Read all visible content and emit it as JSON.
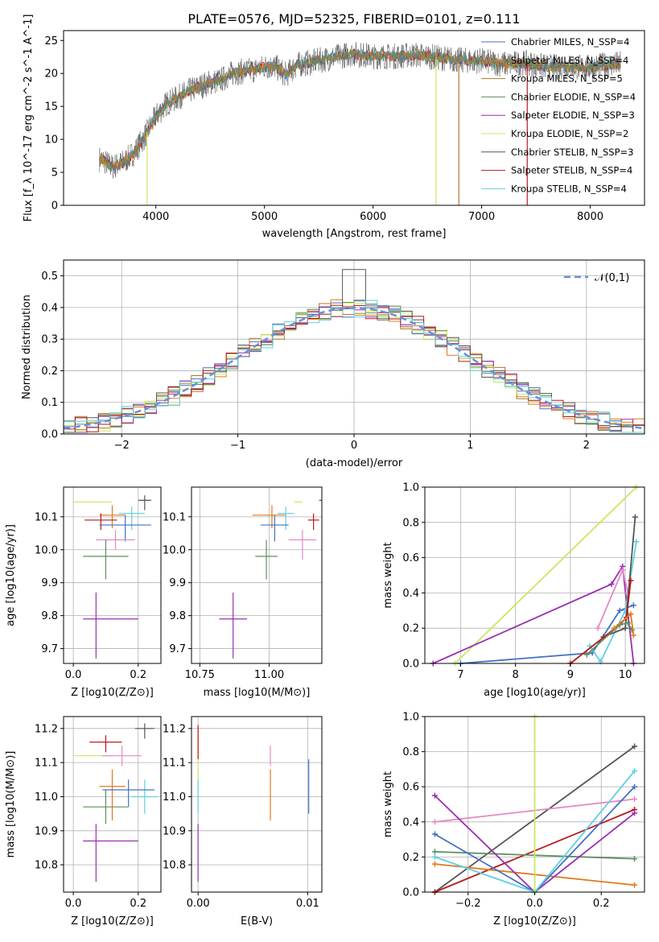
{
  "figure_title": "PLATE=0576, MJD=52325, FIBERID=0101, z=0.111",
  "colors": {
    "grid": "#b0b0b0",
    "axes": "#000000",
    "model_colors": [
      "#4472c4",
      "#e07a1e",
      "#ad7a2a",
      "#5e8f5e",
      "#9a2fb0",
      "#c8e860",
      "#555555",
      "#b8191b",
      "#5ed0e0"
    ],
    "extra_colors": [
      "#e68ac2",
      "#8c564b"
    ]
  },
  "chart_data": [
    {
      "id": "spectrum",
      "type": "line",
      "title": "PLATE=0576, MJD=52325, FIBERID=0101, z=0.111",
      "xlabel": "wavelength [Angstrom, rest frame]",
      "ylabel": "Flux [f_λ 10^-17 erg cm^-2 s^-1 A^-1]",
      "xlim": [
        3150,
        8500
      ],
      "ylim": [
        0,
        26.5
      ],
      "xticks": [
        "4000",
        "5000",
        "6000",
        "7000",
        "8000"
      ],
      "yticks": [
        "0",
        "5",
        "10",
        "15",
        "20",
        "25"
      ],
      "grid": false,
      "legend_position": "upper right",
      "legend": [
        {
          "label": "Chabrier MILES, N_SSP=4",
          "color": "#4472c4"
        },
        {
          "label": "Salpeter MILES, N_SSP=4",
          "color": "#e07a1e"
        },
        {
          "label": "Kroupa MILES, N_SSP=5",
          "color": "#ad7a2a"
        },
        {
          "label": "Chabrier ELODIE, N_SSP=4",
          "color": "#5e8f5e"
        },
        {
          "label": "Salpeter ELODIE, N_SSP=3",
          "color": "#9a2fb0"
        },
        {
          "label": "Kroupa ELODIE, N_SSP=2",
          "color": "#c8e860"
        },
        {
          "label": "Chabrier STELIB, N_SSP=3",
          "color": "#555555"
        },
        {
          "label": "Salpeter STELIB, N_SSP=4",
          "color": "#b8191b"
        },
        {
          "label": "Kroupa STELIB, N_SSP=4",
          "color": "#5ed0e0"
        }
      ],
      "spectrum_anchors": {
        "x": [
          3500,
          3600,
          3700,
          3800,
          3900,
          4000,
          4100,
          4200,
          4300,
          4400,
          4500,
          4600,
          4700,
          4800,
          4900,
          5000,
          5100,
          5200,
          5300,
          5400,
          5600,
          5800,
          6000,
          6200,
          6400,
          6600,
          6800,
          7000,
          7200,
          7400,
          7600,
          7800,
          8000,
          8200
        ],
        "y": [
          7.0,
          5.8,
          6.5,
          8.0,
          10.5,
          13.5,
          15.5,
          16.3,
          17.3,
          18.0,
          18.6,
          19.0,
          20.0,
          20.3,
          20.5,
          21.0,
          21.0,
          19.8,
          21.3,
          21.6,
          22.3,
          23.0,
          22.6,
          22.6,
          22.8,
          22.4,
          22.0,
          21.9,
          21.4,
          21.6,
          21.0,
          21.0,
          20.9,
          21.4
        ]
      },
      "spikes": [
        {
          "x": 3920,
          "y": 0,
          "color": "#c8e860"
        },
        {
          "x": 6580,
          "y": 0,
          "color": "#c8e860"
        },
        {
          "x": 6790,
          "y": 0,
          "color": "#ad7a2a"
        },
        {
          "x": 7420,
          "y": 0,
          "color": "#b8191b"
        }
      ]
    },
    {
      "id": "residual_hist",
      "type": "area",
      "xlabel": "(data-model)/error",
      "ylabel": "Normed distribution",
      "xlim": [
        -2.5,
        2.5
      ],
      "ylim": [
        0,
        0.55
      ],
      "xticks": [
        "−2",
        "−1",
        "0",
        "1",
        "2"
      ],
      "yticks": [
        "0.0",
        "0.1",
        "0.2",
        "0.3",
        "0.4",
        "0.5"
      ],
      "grid": true,
      "legend_position": "upper right",
      "legend": [
        {
          "label": "𝒩(0,1)",
          "color": "#6a8fd8"
        }
      ],
      "bin_width": 0.1,
      "bin_start": -2.5
    },
    {
      "id": "age_vs_Z",
      "type": "scatter",
      "xlabel": "Z [log10(Z/Z⊙)]",
      "ylabel": "age  [log10(age/yr)]",
      "xlim": [
        -0.03,
        0.27
      ],
      "ylim": [
        9.655,
        10.19
      ],
      "xticks": [
        "0.0",
        "0.2"
      ],
      "yticks": [
        "9.7",
        "9.8",
        "9.9",
        "10.0",
        "10.1"
      ],
      "grid": true,
      "points": [
        {
          "x": 0.06,
          "y": 10.145,
          "xerr": [
            0.06,
            0.06
          ],
          "yerr": [
            0.0,
            0.0
          ],
          "color": "#c8e860"
        },
        {
          "x": 0.12,
          "y": 10.105,
          "xerr": [
            0.04,
            0.04
          ],
          "yerr": [
            0.04,
            0.03
          ],
          "color": "#e07a1e"
        },
        {
          "x": 0.085,
          "y": 10.09,
          "xerr": [
            0.05,
            0.05
          ],
          "yerr": [
            0.03,
            0.02
          ],
          "color": "#b8191b"
        },
        {
          "x": 0.18,
          "y": 10.11,
          "xerr": [
            0.04,
            0.04
          ],
          "yerr": [
            0.05,
            0.02
          ],
          "color": "#5ed0e0"
        },
        {
          "x": 0.16,
          "y": 10.075,
          "xerr": [
            0.08,
            0.08
          ],
          "yerr": [
            0.05,
            0.03
          ],
          "color": "#4472c4"
        },
        {
          "x": 0.13,
          "y": 10.03,
          "xerr": [
            0.06,
            0.06
          ],
          "yerr": [
            0.03,
            0.03
          ],
          "color": "#e68ac2"
        },
        {
          "x": 0.22,
          "y": 10.15,
          "xerr": [
            0.02,
            0.02
          ],
          "yerr": [
            0.03,
            0.015
          ],
          "color": "#555555"
        },
        {
          "x": 0.1,
          "y": 9.98,
          "xerr": [
            0.07,
            0.07
          ],
          "yerr": [
            0.07,
            0.05
          ],
          "color": "#5e8f5e"
        },
        {
          "x": 0.07,
          "y": 9.79,
          "xerr": [
            0.04,
            0.13
          ],
          "yerr": [
            0.12,
            0.08
          ],
          "color": "#9a2fb0"
        }
      ]
    },
    {
      "id": "age_vs_mass",
      "type": "scatter",
      "xlabel": "mass [log10(M/M⊙)]",
      "ylabel": "",
      "xlim": [
        10.72,
        11.19
      ],
      "ylim": [
        9.655,
        10.19
      ],
      "xticks": [
        "10.75",
        "11.00"
      ],
      "yticks": [
        "9.7",
        "9.8",
        "9.9",
        "10.0",
        "10.1"
      ],
      "grid": true,
      "points": [
        {
          "x": 11.12,
          "y": 10.145,
          "xerr": [
            0.03,
            0.0
          ],
          "yerr": [
            0.0,
            0.0
          ],
          "color": "#c8e860"
        },
        {
          "x": 11.01,
          "y": 10.105,
          "xerr": [
            0.07,
            0.05
          ],
          "yerr": [
            0.04,
            0.03
          ],
          "color": "#e07a1e"
        },
        {
          "x": 11.16,
          "y": 10.09,
          "xerr": [
            0.02,
            0.02
          ],
          "yerr": [
            0.03,
            0.02
          ],
          "color": "#b8191b"
        },
        {
          "x": 11.06,
          "y": 10.11,
          "xerr": [
            0.03,
            0.03
          ],
          "yerr": [
            0.05,
            0.02
          ],
          "color": "#5ed0e0"
        },
        {
          "x": 11.02,
          "y": 10.075,
          "xerr": [
            0.05,
            0.05
          ],
          "yerr": [
            0.05,
            0.03
          ],
          "color": "#4472c4"
        },
        {
          "x": 11.12,
          "y": 10.03,
          "xerr": [
            0.05,
            0.05
          ],
          "yerr": [
            0.06,
            0.03
          ],
          "color": "#e68ac2"
        },
        {
          "x": 11.2,
          "y": 10.15,
          "xerr": [
            0.02,
            0.02
          ],
          "yerr": [
            0.03,
            0.015
          ],
          "color": "#555555"
        },
        {
          "x": 10.99,
          "y": 9.98,
          "xerr": [
            0.04,
            0.04
          ],
          "yerr": [
            0.07,
            0.05
          ],
          "color": "#5e8f5e"
        },
        {
          "x": 10.87,
          "y": 9.79,
          "xerr": [
            0.05,
            0.05
          ],
          "yerr": [
            0.12,
            0.08
          ],
          "color": "#9a2fb0"
        }
      ]
    },
    {
      "id": "age_weights",
      "type": "line",
      "xlabel": "age  [log10(age/yr)]",
      "ylabel": "mass weight",
      "xlim": [
        6.35,
        10.35
      ],
      "ylim": [
        0,
        1.0
      ],
      "xticks": [
        "7",
        "8",
        "9",
        "10"
      ],
      "yticks": [
        "0.0",
        "0.2",
        "0.4",
        "0.6",
        "0.8",
        "1.0"
      ],
      "grid": true,
      "series": [
        {
          "color": "#c8e860",
          "x": [
            6.9,
            10.2
          ],
          "y": [
            0.0,
            1.0
          ]
        },
        {
          "color": "#9a2fb0",
          "x": [
            6.5,
            9.75,
            9.95,
            10.15
          ],
          "y": [
            0.0,
            0.45,
            0.55,
            0.0
          ]
        },
        {
          "color": "#4472c4",
          "x": [
            7.0,
            9.4,
            9.9,
            10.15
          ],
          "y": [
            0.0,
            0.06,
            0.3,
            0.33
          ]
        },
        {
          "color": "#5ed0e0",
          "x": [
            9.35,
            9.55,
            10.0,
            10.2
          ],
          "y": [
            0.1,
            0.01,
            0.3,
            0.69
          ]
        },
        {
          "color": "#e68ac2",
          "x": [
            9.5,
            9.95,
            10.05
          ],
          "y": [
            0.2,
            0.53,
            0.4
          ]
        },
        {
          "color": "#555555",
          "x": [
            9.6,
            10.0,
            10.18
          ],
          "y": [
            0.15,
            0.2,
            0.83
          ]
        },
        {
          "color": "#b8191b",
          "x": [
            9.0,
            9.9,
            10.02,
            10.1
          ],
          "y": [
            0.0,
            0.22,
            0.26,
            0.47
          ]
        },
        {
          "color": "#5e8f5e",
          "x": [
            9.3,
            9.9,
            10.05,
            10.12
          ],
          "y": [
            0.05,
            0.22,
            0.23,
            0.19
          ]
        },
        {
          "color": "#e07a1e",
          "x": [
            9.8,
            10.1,
            10.15
          ],
          "y": [
            0.2,
            0.28,
            0.16
          ]
        }
      ]
    },
    {
      "id": "mass_vs_Z",
      "type": "scatter",
      "xlabel": "Z [log10(Z/Z⊙)]",
      "ylabel": "mass [log10(M/M⊙)]",
      "xlim": [
        -0.03,
        0.27
      ],
      "ylim": [
        10.72,
        11.235
      ],
      "xticks": [
        "0.0",
        "0.2"
      ],
      "yticks": [
        "10.8",
        "10.9",
        "11.0",
        "11.1",
        "11.2"
      ],
      "grid": true,
      "points": [
        {
          "x": 0.06,
          "y": 11.12,
          "xerr": [
            0.06,
            0.06
          ],
          "yerr": [
            0.0,
            0.0
          ],
          "color": "#c8e860"
        },
        {
          "x": 0.12,
          "y": 11.03,
          "xerr": [
            0.04,
            0.04
          ],
          "yerr": [
            0.1,
            0.05
          ],
          "color": "#e07a1e"
        },
        {
          "x": 0.1,
          "y": 11.16,
          "xerr": [
            0.05,
            0.05
          ],
          "yerr": [
            0.03,
            0.02
          ],
          "color": "#b8191b"
        },
        {
          "x": 0.22,
          "y": 11.0,
          "xerr": [
            0.04,
            0.04
          ],
          "yerr": [
            0.05,
            0.05
          ],
          "color": "#5ed0e0"
        },
        {
          "x": 0.17,
          "y": 11.02,
          "xerr": [
            0.08,
            0.08
          ],
          "yerr": [
            0.05,
            0.03
          ],
          "color": "#4472c4"
        },
        {
          "x": 0.15,
          "y": 11.12,
          "xerr": [
            0.06,
            0.06
          ],
          "yerr": [
            0.03,
            0.03
          ],
          "color": "#e68ac2"
        },
        {
          "x": 0.22,
          "y": 11.2,
          "xerr": [
            0.03,
            0.03
          ],
          "yerr": [
            0.03,
            0.015
          ],
          "color": "#555555"
        },
        {
          "x": 0.1,
          "y": 10.97,
          "xerr": [
            0.07,
            0.07
          ],
          "yerr": [
            0.05,
            0.05
          ],
          "color": "#5e8f5e"
        },
        {
          "x": 0.07,
          "y": 10.87,
          "xerr": [
            0.04,
            0.13
          ],
          "yerr": [
            0.12,
            0.05
          ],
          "color": "#9a2fb0"
        }
      ]
    },
    {
      "id": "mass_vs_ebv",
      "type": "scatter",
      "xlabel": "E(B-V)",
      "ylabel": "",
      "xlim": [
        -0.0006,
        0.0113
      ],
      "ylim": [
        10.72,
        11.235
      ],
      "xticks": [
        "0.00",
        "0.01"
      ],
      "yticks": [
        "10.8",
        "10.9",
        "11.0",
        "11.1",
        "11.2"
      ],
      "grid": true,
      "points": [
        {
          "x": 0.0,
          "y": 11.12,
          "xerr": [
            0,
            0
          ],
          "yerr": [
            0.08,
            0.08
          ],
          "color": "#c8e860"
        },
        {
          "x": 0.0,
          "y": 11.16,
          "xerr": [
            0,
            0
          ],
          "yerr": [
            0.05,
            0.05
          ],
          "color": "#b8191b"
        },
        {
          "x": 0.0,
          "y": 10.87,
          "xerr": [
            0,
            0
          ],
          "yerr": [
            0.12,
            0.05
          ],
          "color": "#9a2fb0"
        },
        {
          "x": 0.0,
          "y": 11.0,
          "xerr": [
            0,
            0
          ],
          "yerr": [
            0.05,
            0.05
          ],
          "color": "#5ed0e0"
        },
        {
          "x": 0.0066,
          "y": 11.03,
          "xerr": [
            0,
            0
          ],
          "yerr": [
            0.1,
            0.05
          ],
          "color": "#e07a1e"
        },
        {
          "x": 0.0066,
          "y": 11.12,
          "xerr": [
            0,
            0
          ],
          "yerr": [
            0.03,
            0.03
          ],
          "color": "#e68ac2"
        },
        {
          "x": 0.0101,
          "y": 11.03,
          "xerr": [
            0,
            0
          ],
          "yerr": [
            0.08,
            0.08
          ],
          "color": "#4472c4"
        }
      ]
    },
    {
      "id": "Z_weights",
      "type": "line",
      "xlabel": "Z [log10(Z/Z⊙)]",
      "ylabel": "mass weight",
      "xlim": [
        -0.33,
        0.33
      ],
      "ylim": [
        0,
        1.0
      ],
      "xticks": [
        "−0.2",
        "0.0",
        "0.2"
      ],
      "yticks": [
        "0.0",
        "0.2",
        "0.4",
        "0.6",
        "0.8",
        "1.0"
      ],
      "grid": true,
      "series": [
        {
          "color": "#555555",
          "x": [
            -0.3,
            0.3
          ],
          "y": [
            0.0,
            0.83
          ]
        },
        {
          "color": "#b8191b",
          "x": [
            -0.3,
            0.3
          ],
          "y": [
            0.0,
            0.47
          ]
        },
        {
          "color": "#e68ac2",
          "x": [
            -0.3,
            0.3
          ],
          "y": [
            0.4,
            0.53
          ]
        },
        {
          "color": "#5e8f5e",
          "x": [
            -0.3,
            0.3
          ],
          "y": [
            0.23,
            0.19
          ]
        },
        {
          "color": "#e07a1e",
          "x": [
            -0.3,
            0.3
          ],
          "y": [
            0.16,
            0.04
          ]
        },
        {
          "color": "#9a2fb0",
          "x": [
            -0.3,
            0.0,
            0.3
          ],
          "y": [
            0.55,
            0.0,
            0.45
          ]
        },
        {
          "color": "#4472c4",
          "x": [
            -0.3,
            0.0,
            0.3
          ],
          "y": [
            0.33,
            0.0,
            0.6
          ]
        },
        {
          "color": "#5ed0e0",
          "x": [
            -0.3,
            0.0,
            0.3
          ],
          "y": [
            0.2,
            0.0,
            0.69
          ]
        },
        {
          "color": "#c8e860",
          "x": [
            0.0,
            0.0
          ],
          "y": [
            0.0,
            1.0
          ]
        }
      ]
    }
  ]
}
